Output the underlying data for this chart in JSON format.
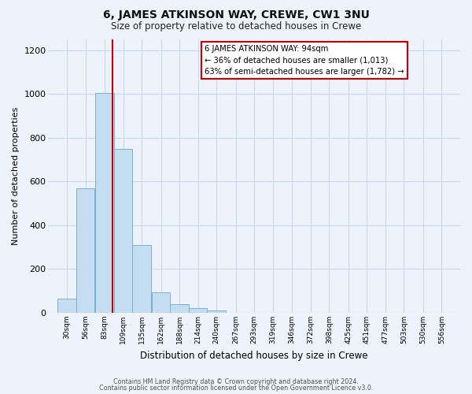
{
  "title": "6, JAMES ATKINSON WAY, CREWE, CW1 3NU",
  "subtitle": "Size of property relative to detached houses in Crewe",
  "xlabel": "Distribution of detached houses by size in Crewe",
  "ylabel": "Number of detached properties",
  "bar_labels": [
    "30sqm",
    "56sqm",
    "83sqm",
    "109sqm",
    "135sqm",
    "162sqm",
    "188sqm",
    "214sqm",
    "240sqm",
    "267sqm",
    "293sqm",
    "319sqm",
    "346sqm",
    "372sqm",
    "398sqm",
    "425sqm",
    "451sqm",
    "477sqm",
    "503sqm",
    "530sqm",
    "556sqm"
  ],
  "bar_values": [
    65,
    570,
    1005,
    750,
    310,
    95,
    40,
    20,
    10,
    0,
    0,
    0,
    0,
    0,
    0,
    0,
    0,
    0,
    0,
    0,
    0
  ],
  "bin_centers": [
    30,
    56,
    83,
    109,
    135,
    162,
    188,
    214,
    240,
    267,
    293,
    319,
    346,
    372,
    398,
    425,
    451,
    477,
    503,
    530,
    556
  ],
  "bar_color": "#c5ddf0",
  "bar_edge_color": "#7ab0d4",
  "property_size": 94,
  "property_line_label": "6 JAMES ATKINSON WAY: 94sqm",
  "annotation_line1": "← 36% of detached houses are smaller (1,013)",
  "annotation_line2": "63% of semi-detached houses are larger (1,782) →",
  "annotation_box_color": "#ffffff",
  "annotation_box_edge_color": "#cc0000",
  "property_line_color": "#cc0000",
  "ylim": [
    0,
    1250
  ],
  "yticks": [
    0,
    200,
    400,
    600,
    800,
    1000,
    1200
  ],
  "xlim": [
    4,
    582
  ],
  "grid_color": "#c8d8ec",
  "background_color": "#eef2fa",
  "footer_line1": "Contains HM Land Registry data © Crown copyright and database right 2024.",
  "footer_line2": "Contains public sector information licensed under the Open Government Licence v3.0."
}
